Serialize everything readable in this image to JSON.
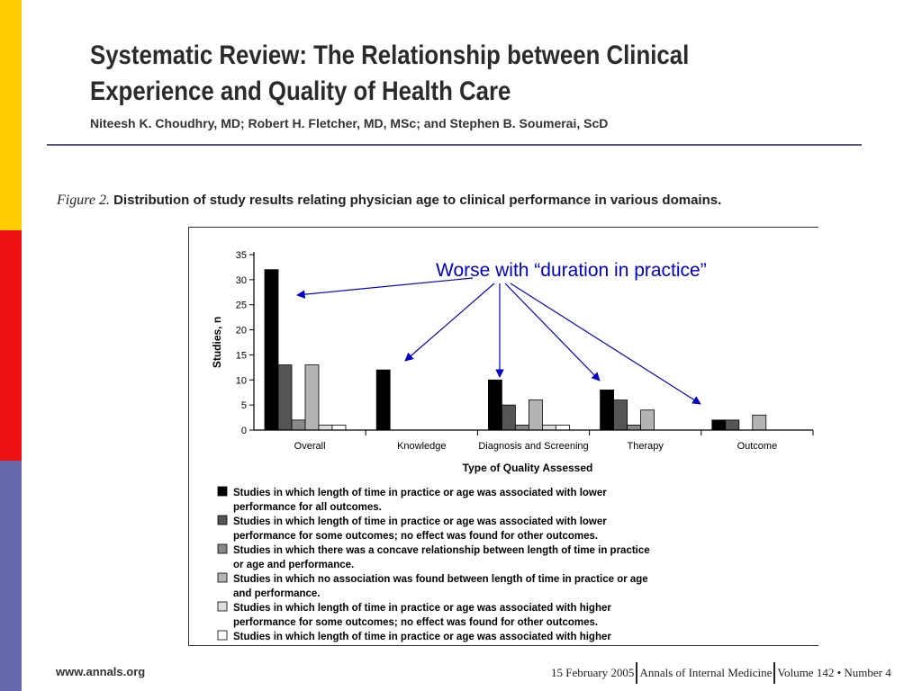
{
  "slide": {
    "title": "Systematic Review: The Relationship between Clinical Experience and Quality of Health Care",
    "authors": "Niteesh K. Choudhry, MD; Robert H. Fletcher, MD, MSc; and Stephen B. Soumerai, ScD",
    "figure_label": "Figure 2.",
    "figure_caption": "Distribution of study results relating physician age to clinical performance in various domains.",
    "annotation": "Worse with “duration in practice”",
    "footer_left": "www.annals.org",
    "footer_date": "15 February 2005",
    "footer_journal": "Annals of Internal Medicine",
    "footer_volume": "Volume 142 • Number 4"
  },
  "colors": {
    "side_bar": [
      "#ffcc00",
      "#ee1111",
      "#6666aa"
    ],
    "rule": "#555577",
    "annotation": "#0000cc",
    "series": [
      "#000000",
      "#555555",
      "#888888",
      "#b4b4b4",
      "#dcdcdc",
      "#ffffff"
    ]
  },
  "chart_data": {
    "type": "bar",
    "ylabel": "Studies, n",
    "xlabel": "Type of Quality Assessed",
    "ylim": [
      0,
      35
    ],
    "yticks": [
      0,
      5,
      10,
      15,
      20,
      25,
      30,
      35
    ],
    "categories": [
      "Overall",
      "Knowledge",
      "Diagnosis and Screening",
      "Therapy",
      "Outcome"
    ],
    "series": [
      {
        "name": "Studies in which length of time in practice or age was associated with lower performance for all outcomes.",
        "values": [
          32,
          12,
          10,
          8,
          2
        ]
      },
      {
        "name": "Studies in which length of time in practice or age was associated with lower performance for some outcomes; no effect was found for other outcomes.",
        "values": [
          13,
          0,
          5,
          6,
          2
        ]
      },
      {
        "name": "Studies in which there was a concave relationship between length of time in practice or age and performance.",
        "values": [
          2,
          0,
          1,
          1,
          0
        ]
      },
      {
        "name": "Studies in which no association was found between length of time in practice or age and performance.",
        "values": [
          13,
          0,
          6,
          4,
          3
        ]
      },
      {
        "name": "Studies in which length of time in practice or age was associated with higher performance for some outcomes; no effect was found for other outcomes.",
        "values": [
          1,
          0,
          1,
          0,
          0
        ]
      },
      {
        "name": "Studies in which length of time in practice or age was associated with higher performance for all outcomes.",
        "values": [
          1,
          0,
          1,
          0,
          0
        ]
      }
    ]
  }
}
